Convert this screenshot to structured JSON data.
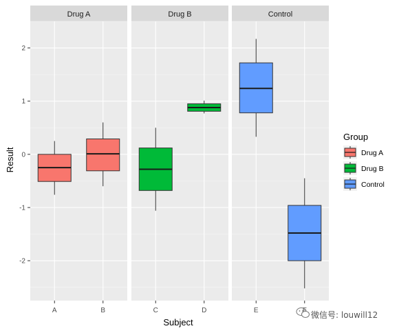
{
  "chart_data": {
    "type": "boxplot",
    "xlabel": "Subject",
    "ylabel": "Result",
    "ylim": [
      -2.75,
      2.5
    ],
    "yticks": [
      -2,
      -1,
      0,
      1,
      2
    ],
    "ytick_labels": [
      "-2",
      "-1",
      "0",
      "1",
      "2"
    ],
    "grid": true,
    "legend": {
      "title": "Group",
      "placement": "right",
      "entries": [
        "Drug A",
        "Drug B",
        "Control"
      ]
    },
    "colors": {
      "Drug A": "#f8766d",
      "Drug B": "#00ba38",
      "Control": "#619cff"
    },
    "facets": [
      {
        "label": "Drug A",
        "group": "Drug A",
        "categories": [
          "A",
          "B"
        ],
        "boxes": [
          {
            "category": "A",
            "min": -0.76,
            "q1": -0.51,
            "median": -0.25,
            "q3": 0.0,
            "max": 0.25
          },
          {
            "category": "B",
            "min": -0.6,
            "q1": -0.31,
            "median": 0.01,
            "q3": 0.29,
            "max": 0.6
          }
        ]
      },
      {
        "label": "Drug B",
        "group": "Drug B",
        "categories": [
          "C",
          "D"
        ],
        "boxes": [
          {
            "category": "C",
            "min": -1.06,
            "q1": -0.68,
            "median": -0.28,
            "q3": 0.12,
            "max": 0.5
          },
          {
            "category": "D",
            "min": 0.77,
            "q1": 0.81,
            "median": 0.88,
            "q3": 0.95,
            "max": 1.01
          }
        ]
      },
      {
        "label": "Control",
        "group": "Control",
        "categories": [
          "E",
          "F"
        ],
        "boxes": [
          {
            "category": "E",
            "min": 0.33,
            "q1": 0.78,
            "median": 1.24,
            "q3": 1.72,
            "max": 2.17
          },
          {
            "category": "F",
            "min": -2.52,
            "q1": -2.0,
            "median": -1.48,
            "q3": -0.96,
            "max": -0.45
          }
        ]
      }
    ]
  },
  "watermark": {
    "text": "微信号: louwill12",
    "icon": "wechat-icon"
  }
}
